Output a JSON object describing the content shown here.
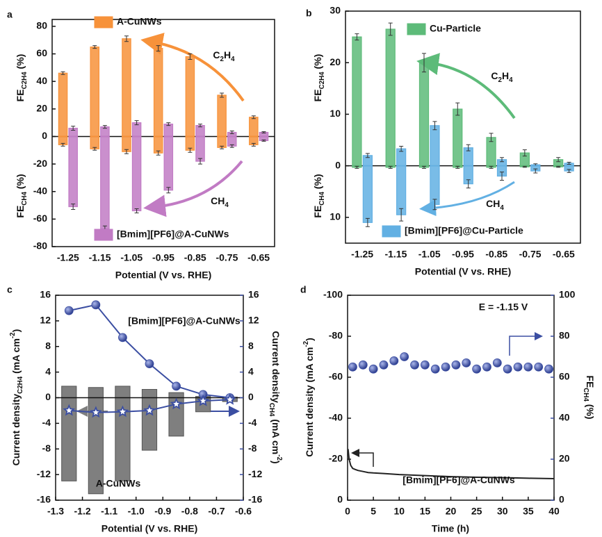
{
  "chart_data": [
    {
      "panel": "a",
      "type": "bar",
      "categories": [
        "-1.25",
        "-1.15",
        "-1.05",
        "-0.95",
        "-0.85",
        "-0.75",
        "-0.65"
      ],
      "series": [
        {
          "name": "A-CuNWs",
          "color": "#f7923a",
          "values": [
            46,
            65,
            71,
            64,
            58,
            30,
            14
          ],
          "errors": [
            1,
            1,
            2,
            2,
            2,
            1.5,
            1
          ],
          "values_ch4": [
            -6,
            -9,
            -11,
            -12,
            -10,
            -8,
            -6
          ],
          "errors_ch4": [
            1,
            1,
            1.5,
            1.5,
            1.5,
            1,
            1
          ]
        },
        {
          "name": "[Bmim][PF6]@A-CuNWs",
          "color": "#c17bc4",
          "values": [
            6,
            7,
            10,
            9,
            8,
            3,
            3
          ],
          "errors": [
            1.5,
            1,
            1.5,
            1,
            1,
            1,
            0.5
          ],
          "values_ch4": [
            -51,
            -67,
            -54,
            -39,
            -18,
            -7,
            -3
          ],
          "errors_ch4": [
            2,
            2,
            1.5,
            2,
            2,
            1,
            0.5
          ]
        }
      ],
      "ylim": [
        -80,
        85
      ],
      "yticks": [
        -80,
        -60,
        -40,
        -20,
        0,
        20,
        40,
        60,
        80
      ],
      "xlabel": "Potential (V vs. RHE)",
      "ylabel_top": [
        {
          "text": "FE"
        },
        {
          "text": "C2H4",
          "sub": true
        },
        {
          "text": " (%)"
        }
      ],
      "ylabel_bottom": [
        {
          "text": "FE"
        },
        {
          "text": "CH4",
          "sub": true
        },
        {
          "text": " (%)"
        }
      ],
      "annotations": [
        [
          {
            "text": "C"
          },
          {
            "text": "2",
            "sub": true
          },
          {
            "text": "H"
          },
          {
            "text": "4",
            "sub": true
          }
        ],
        [
          {
            "text": "CH"
          },
          {
            "text": "4",
            "sub": true
          }
        ]
      ]
    },
    {
      "panel": "b",
      "type": "bar",
      "categories": [
        "-1.25",
        "-1.15",
        "-1.05",
        "-0.95",
        "-0.85",
        "-0.75",
        "-0.65"
      ],
      "series": [
        {
          "name": "Cu-Particle",
          "color": "#5dbb79",
          "values": [
            25,
            26.5,
            20,
            11,
            5.5,
            2.5,
            1.2
          ],
          "errors": [
            0.6,
            1.2,
            1.8,
            1.2,
            0.8,
            0.6,
            0.4
          ],
          "values_ch4": [
            -0.3,
            -0.3,
            -0.3,
            -0.3,
            -0.3,
            -0.2,
            -0.2
          ],
          "errors_ch4": [
            0.2,
            0.2,
            0.2,
            0.2,
            0.2,
            0.1,
            0.1
          ]
        },
        {
          "name": "[Bmim][PF6]@Cu-Particle",
          "color": "#62b0e3",
          "values": [
            2,
            3.3,
            7.8,
            3.5,
            1.2,
            0.2,
            0.5
          ],
          "errors": [
            0.4,
            0.5,
            0.8,
            0.6,
            0.4,
            0.2,
            0.2
          ],
          "values_ch4": [
            -11,
            -9.5,
            -7.5,
            -3.5,
            -2,
            -1,
            -1
          ],
          "errors_ch4": [
            0.8,
            1.2,
            1,
            0.8,
            0.8,
            0.4,
            0.3
          ]
        }
      ],
      "ylim": [
        -15,
        30
      ],
      "yticks": [
        {
          "value": -10,
          "label": "10"
        },
        0,
        10,
        20,
        30
      ],
      "xlabel": "Potential (V vs. RHE)",
      "ylabel_top": [
        {
          "text": "FE"
        },
        {
          "text": "C2H4",
          "sub": true
        },
        {
          "text": " (%)"
        }
      ],
      "ylabel_bottom": [
        {
          "text": "FE"
        },
        {
          "text": "CH4",
          "sub": true
        },
        {
          "text": " (%)"
        }
      ],
      "annotations": [
        [
          {
            "text": "C"
          },
          {
            "text": "2",
            "sub": true
          },
          {
            "text": "H"
          },
          {
            "text": "4",
            "sub": true
          }
        ],
        [
          {
            "text": "CH"
          },
          {
            "text": "4",
            "sub": true
          }
        ]
      ]
    },
    {
      "panel": "c",
      "type": "combo",
      "x": [
        -1.25,
        -1.15,
        -1.05,
        -0.95,
        -0.85,
        -0.75,
        -0.65
      ],
      "bars": [
        {
          "name": "[Bmim][PF6]@A-CuNWs",
          "color": "#7f7f7f",
          "values": [
            1.8,
            1.6,
            1.8,
            1.3,
            0.8,
            0.2,
            0.1
          ]
        },
        {
          "name": "A-CuNWs",
          "color": "#7f7f7f",
          "values": [
            -13,
            -15,
            -13,
            -8.2,
            -6,
            -2.2,
            -0.6
          ]
        }
      ],
      "series": [
        {
          "axis": "y2",
          "marker": "circle",
          "connect": true,
          "color": "#3b4ea2",
          "values": [
            13.6,
            14.5,
            9.4,
            5.3,
            1.8,
            0.5,
            0
          ]
        },
        {
          "axis": "y2",
          "marker": "star",
          "connect": true,
          "color": "#3b4ea2",
          "values": [
            -2,
            -2.3,
            -2.2,
            -2,
            -1,
            -0.5,
            -0.3
          ]
        }
      ],
      "xlim": [
        -1.3,
        -0.6
      ],
      "xticks": [
        -1.3,
        -1.2,
        -1.1,
        {
          "value": -1,
          "label": "-1.0"
        },
        -0.9,
        -0.8,
        -0.7,
        -0.6
      ],
      "ylim": [
        -16,
        16
      ],
      "yticks": [
        -16,
        -12,
        -8,
        -4,
        0,
        4,
        8,
        12,
        16
      ],
      "y2lim": [
        -16,
        16
      ],
      "y2ticks": [
        -16,
        -12,
        -8,
        -4,
        0,
        4,
        8,
        12,
        16
      ],
      "y2_color": "#3b4ea2",
      "xlabel": "Potential (V vs. RHE)",
      "ylabel": [
        {
          "text": "Current density"
        },
        {
          "text": "C2H4",
          "sub": true
        },
        {
          "text": " (mA cm"
        },
        {
          "text": "-2",
          "sup": true
        },
        {
          "text": ")"
        }
      ],
      "y2label": [
        {
          "text": "Current density"
        },
        {
          "text": "CH4",
          "sub": true
        },
        {
          "text": " (mA cm"
        },
        {
          "text": "-2",
          "sup": true
        },
        {
          "text": ")"
        }
      ]
    },
    {
      "panel": "d",
      "type": "line",
      "series": [
        {
          "connect": true,
          "color": "#222222",
          "x": [
            0.1,
            0.3,
            0.6,
            1,
            1.5,
            2,
            3,
            4,
            5,
            7,
            10,
            15,
            20,
            25,
            30,
            35,
            40
          ],
          "values": [
            -25,
            -20,
            -17,
            -15.5,
            -15,
            -14.5,
            -14,
            -13.5,
            -13.3,
            -13,
            -12.5,
            -12,
            -11.5,
            -11.2,
            -11,
            -10.7,
            -10.5
          ]
        },
        {
          "axis": "y2",
          "marker": "circle",
          "connect": false,
          "color": "#3b4ea2",
          "x": [
            1,
            3,
            5,
            7,
            9,
            11,
            13,
            15,
            17,
            19,
            21,
            23,
            25,
            27,
            29,
            31,
            33,
            35,
            37,
            39
          ],
          "values": [
            65,
            66,
            64,
            66,
            68,
            70,
            66,
            66,
            64,
            65,
            66,
            67,
            64,
            65,
            67,
            64,
            65,
            65,
            65,
            64
          ]
        }
      ],
      "xlim": [
        0,
        40
      ],
      "xticks": [
        0,
        5,
        10,
        15,
        20,
        25,
        30,
        35,
        40
      ],
      "ylim": [
        0,
        -100
      ],
      "yticks": [
        0,
        -20,
        -40,
        -60,
        -80,
        -100
      ],
      "y2lim": [
        0,
        100
      ],
      "y2ticks": [
        0,
        20,
        40,
        60,
        80,
        100
      ],
      "y2_color": "#3b4ea2",
      "xlabel": "Time (h)",
      "ylabel": [
        {
          "text": "Current density (mA cm"
        },
        {
          "text": "-2",
          "sup": true
        },
        {
          "text": ")"
        }
      ],
      "y2label": [
        {
          "text": "FE"
        },
        {
          "text": "CH4",
          "sub": true
        },
        {
          "text": " (%)"
        }
      ],
      "annotations": [
        "E = -1.15 V",
        "[Bmim][PF6]@A-CuNWs"
      ]
    }
  ]
}
